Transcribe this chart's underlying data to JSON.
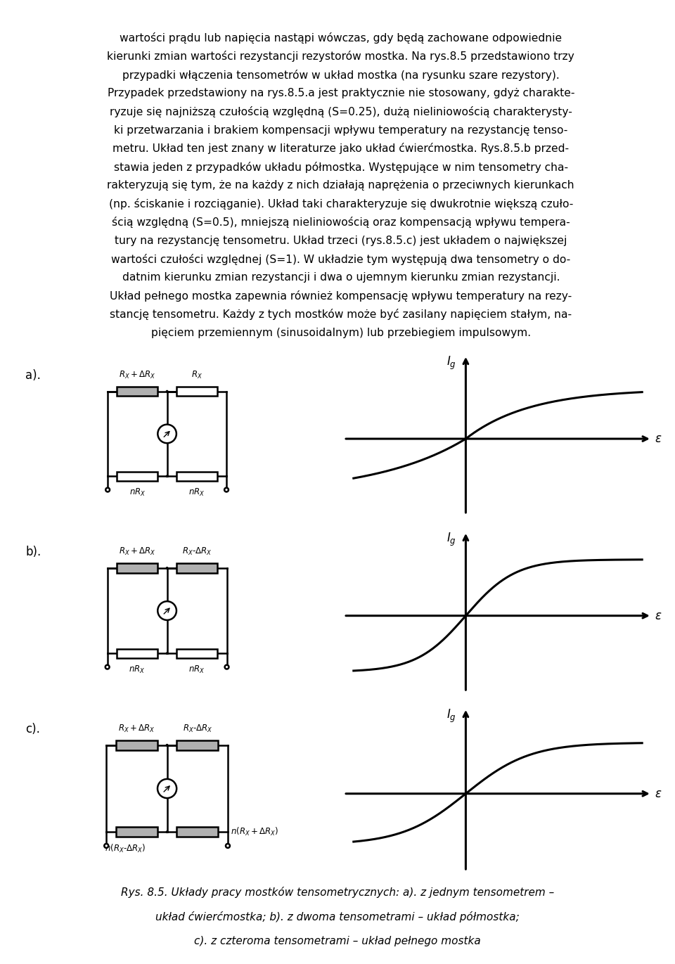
{
  "text_block": [
    "wartości prądu lub napięcia nastąpi wówczas, gdy będą zachowane odpowiednie",
    "kierunki zmian wartości rezystancji rezystorów mostka. Na rys.8.5 przedstawiono trzy",
    "przypadki włączenia tensometrów w układ mostka (na rysunku szare rezystory).",
    "Przypadek przedstawiony na rys.8.5.a jest praktycznie nie stosowany, gdyż charakte-",
    "ryzuje się najniższą czułością względną (S=0.25), dużą nieliniowością charakterysty-",
    "ki przetwarzania i brakiem kompensacji wpływu temperatury na rezystancję tenso-",
    "metru. Układ ten jest znany w literaturze jako układ ćwierćmostka. Rys.8.5.b przed-",
    "stawia jeden z przypadków układu półmostka. Występujące w nim tensometry cha-",
    "rakteryzują się tym, że na każdy z nich działają naprężenia o przeciwnych kierunkach",
    "(np. ściskanie i rozciąganie). Układ taki charakteryzuje się dwukrotnie większą czuło-",
    "ścią względną (S=0.5), mniejszą nieliniowością oraz kompensacją wpływu tempera-",
    "tury na rezystancję tensometru. Układ trzeci (rys.8.5.c) jest układem o największej",
    "wartości czułości względnej (S=1). W układzie tym występują dwa tensometry o do-",
    "datnim kierunku zmian rezystancji i dwa o ujemnym kierunku zmian rezystancji.",
    "Układ pełnego mostka zapewnia również kompensację wpływu temperatury na rezy-",
    "stancję tensometru. Każdy z tych mostków może być zasilany napięciem stałym, na-",
    "pięciem przemiennym (sinusoidalnym) lub przebiegiem impulsowym."
  ],
  "caption_line1": "Rys. 8.5. Układy pracy mostków tensometrycznych: a). z jednym tensometrem –",
  "caption_line2": "układ ćwierćmostka; b). z dwoma tensometrami – układ półmostka;",
  "caption_line3": "c). z czteroma tensometrami – układ pełnego mostka",
  "background_color": "#ffffff",
  "text_color": "#000000",
  "gray_fill": "#b0b0b0",
  "white_fill": "#ffffff",
  "font_size_text": 11.2,
  "font_size_caption": 11.0
}
